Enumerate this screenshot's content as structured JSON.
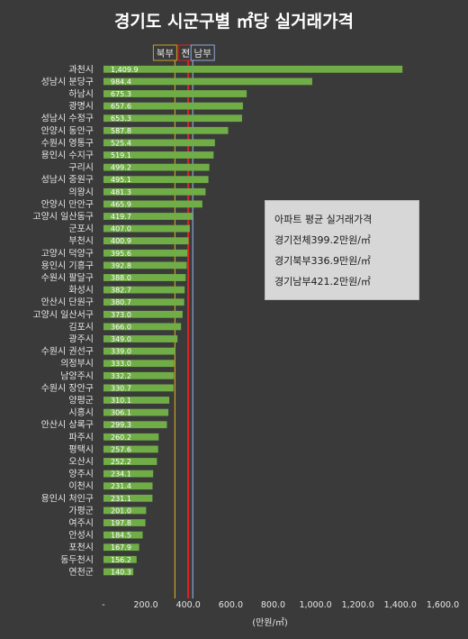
{
  "chart_data": {
    "type": "bar",
    "orientation": "horizontal",
    "title": "경기도 시군구별 ㎡당 실거래가격",
    "xlabel": "(만원/㎡)",
    "ylabel": "",
    "xlim": [
      0,
      1600
    ],
    "tick_labels": [
      "-",
      "200.0",
      "400.0",
      "600.0",
      "800.0",
      "1,000.0",
      "1,200.0",
      "1,400.0",
      "1,600.0"
    ],
    "tick_values": [
      0,
      200,
      400,
      600,
      800,
      1000,
      1200,
      1400,
      1600
    ],
    "categories": [
      "과천시",
      "성남시 분당구",
      "하남시",
      "광명시",
      "성남시 수정구",
      "안양시 동안구",
      "수원시 영통구",
      "용인시 수지구",
      "구리시",
      "성남시 중원구",
      "의왕시",
      "안양시 만안구",
      "고양시 일산동구",
      "군포시",
      "부천시",
      "고양시 덕양구",
      "용인시 기흥구",
      "수원시 팔달구",
      "화성시",
      "안산시 단원구",
      "고양시 일산서구",
      "김포시",
      "광주시",
      "수원시 권선구",
      "의정부시",
      "남양주시",
      "수원시 장안구",
      "양평군",
      "시흥시",
      "안산시 상록구",
      "파주시",
      "평택시",
      "오산시",
      "양주시",
      "이천시",
      "용인시 처인구",
      "가평군",
      "여주시",
      "안성시",
      "포천시",
      "동두천시",
      "연천군"
    ],
    "values": [
      1409.9,
      984.4,
      675.3,
      657.6,
      653.3,
      587.8,
      525.4,
      519.1,
      499.2,
      495.1,
      481.3,
      465.9,
      419.7,
      407.0,
      400.9,
      395.6,
      392.8,
      388.0,
      382.7,
      380.7,
      373.0,
      366.0,
      349.0,
      339.0,
      333.0,
      332.2,
      330.7,
      310.1,
      306.1,
      299.3,
      260.2,
      257.6,
      252.2,
      234.1,
      231.4,
      231.1,
      201.0,
      197.8,
      184.5,
      167.9,
      156.2,
      140.3
    ],
    "value_labels": [
      "1,409.9",
      "984.4",
      "675.3",
      "657.6",
      "653.3",
      "587.8",
      "525.4",
      "519.1",
      "499.2",
      "495.1",
      "481.3",
      "465.9",
      "419.7",
      "407.0",
      "400.9",
      "395.6",
      "392.8",
      "388.0",
      "382.7",
      "380.7",
      "373.0",
      "366.0",
      "349.0",
      "339.0",
      "333.0",
      "332.2",
      "330.7",
      "310.1",
      "306.1",
      "299.3",
      "260.2",
      "257.6",
      "252.2",
      "234.1",
      "231.4",
      "231.1",
      "201.0",
      "197.8",
      "184.5",
      "167.9",
      "156.2",
      "140.3"
    ],
    "bar_color": "#70ad47",
    "reference_lines": [
      {
        "label": "북부",
        "value": 336.9,
        "color": "#c9a227"
      },
      {
        "label": "전체",
        "value": 399.2,
        "color": "#e02020"
      },
      {
        "label": "남부",
        "value": 421.2,
        "color": "#8ea9db"
      }
    ],
    "grid": false,
    "legend": "none"
  },
  "info_box": {
    "line1": "아파트 평균 실거래가격",
    "line2": "경기전체399.2만원/㎡",
    "line3": "경기북부336.9만원/㎡",
    "line4": "경기남부421.2만원/㎡"
  }
}
